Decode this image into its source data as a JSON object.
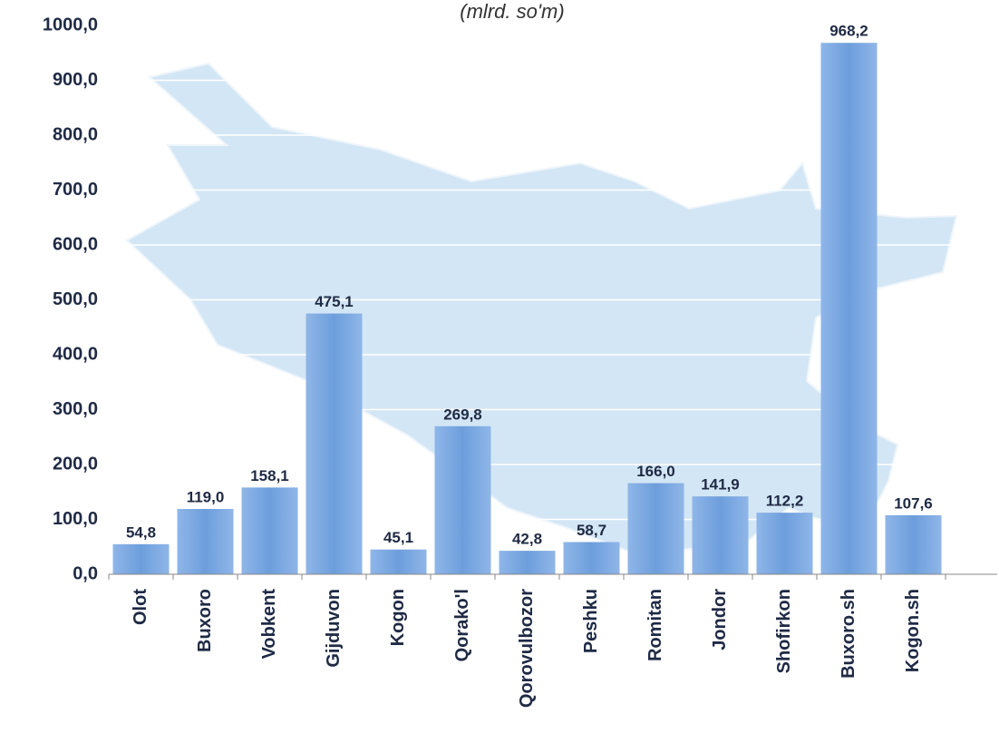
{
  "chart_data": {
    "type": "bar",
    "subtitle": "(mlrd. so'm)",
    "categories": [
      "Olot",
      "Buxoro",
      "Vobkent",
      "Gijduvon",
      "Kogon",
      "Qorako'l",
      "Qorovulbozor",
      "Peshku",
      "Romitan",
      "Jondor",
      "Shofirkon",
      "Buxoro.sh",
      "Kogon.sh"
    ],
    "values": [
      54.8,
      119.0,
      158.1,
      475.1,
      45.1,
      269.8,
      42.8,
      58.7,
      166.0,
      141.9,
      112.2,
      968.2,
      107.6
    ],
    "value_labels": [
      "54,8",
      "119,0",
      "158,1",
      "475,1",
      "45,1",
      "269,8",
      "42,8",
      "58,7",
      "166,0",
      "141,9",
      "112,2",
      "968,2",
      "107,6"
    ],
    "color": "#77a5e0",
    "ylim": [
      0,
      1000
    ],
    "yticks": [
      {
        "value": 0,
        "label": "0,0"
      },
      {
        "value": 100,
        "label": "100,0"
      },
      {
        "value": 200,
        "label": "200,0"
      },
      {
        "value": 300,
        "label": "300,0"
      },
      {
        "value": 400,
        "label": "400,0"
      },
      {
        "value": 500,
        "label": "500,0"
      },
      {
        "value": 600,
        "label": "600,0"
      },
      {
        "value": 700,
        "label": "700,0"
      },
      {
        "value": 800,
        "label": "800,0"
      },
      {
        "value": 900,
        "label": "900,0"
      },
      {
        "value": 1000,
        "label": "1000,0"
      }
    ],
    "grid": true
  }
}
